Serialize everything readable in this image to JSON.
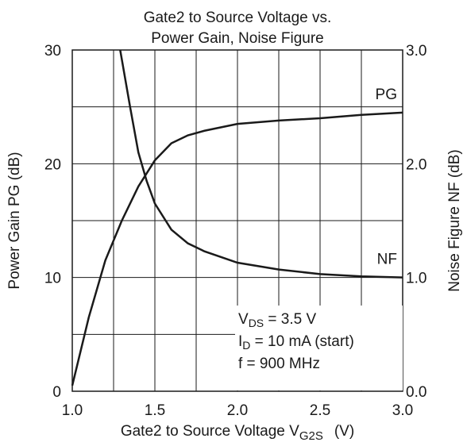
{
  "chart_data": {
    "type": "line",
    "title": [
      "Gate2 to Source Voltage vs.",
      "Power Gain, Noise Figure"
    ],
    "x_label": {
      "text": "Gate2 to Source Voltage  V",
      "sub": "G2S",
      "rest": "(V)"
    },
    "y_label": "Power Gain   PG  (dB)",
    "y2_label": "Noise Figure   NF  (dB)",
    "xlim": [
      1,
      3
    ],
    "xticks": [
      {
        "value": 1,
        "label": "1.0"
      },
      {
        "value": 1.5,
        "label": "1.5"
      },
      {
        "value": 2,
        "label": "2.0"
      },
      {
        "value": 2.5,
        "label": "2.5"
      },
      {
        "value": 3,
        "label": "3.0"
      }
    ],
    "xminor": [
      1.25,
      1.75,
      2.25,
      2.75
    ],
    "ylim": [
      0,
      30
    ],
    "yticks": [
      0,
      10,
      20,
      30
    ],
    "yminor": [
      5,
      15,
      25
    ],
    "y2lim": [
      0,
      3
    ],
    "y2ticks": [
      {
        "value": 0,
        "label": "0.0"
      },
      {
        "value": 1,
        "label": "1.0"
      },
      {
        "value": 2,
        "label": "2.0"
      },
      {
        "value": 3,
        "label": "3.0"
      }
    ],
    "grid": true,
    "color": "#1a1a1a",
    "series": [
      {
        "name": "PG",
        "x": [
          1.0,
          1.1,
          1.2,
          1.3,
          1.4,
          1.5,
          1.6,
          1.7,
          1.8,
          2.0,
          2.25,
          2.5,
          2.75,
          3.0
        ],
        "values": [
          0.5,
          6.5,
          11.5,
          15,
          18,
          20.3,
          21.8,
          22.5,
          22.9,
          23.5,
          23.8,
          24,
          24.3,
          24.5
        ]
      },
      {
        "name": "NF",
        "axis": "y2",
        "x": [
          1.29,
          1.35,
          1.4,
          1.45,
          1.5,
          1.6,
          1.7,
          1.8,
          2.0,
          2.25,
          2.5,
          2.75,
          3.0
        ],
        "values": [
          3.0,
          2.5,
          2.1,
          1.85,
          1.65,
          1.42,
          1.3,
          1.23,
          1.13,
          1.07,
          1.03,
          1.01,
          1.0
        ]
      }
    ],
    "annotations": [
      {
        "text": "V",
        "sub": "DS",
        "rest": " = 3.5 V"
      },
      {
        "text": "I",
        "sub": "D",
        "rest": " = 10 mA (start)"
      },
      {
        "text": "f = 900 MHz"
      }
    ]
  }
}
